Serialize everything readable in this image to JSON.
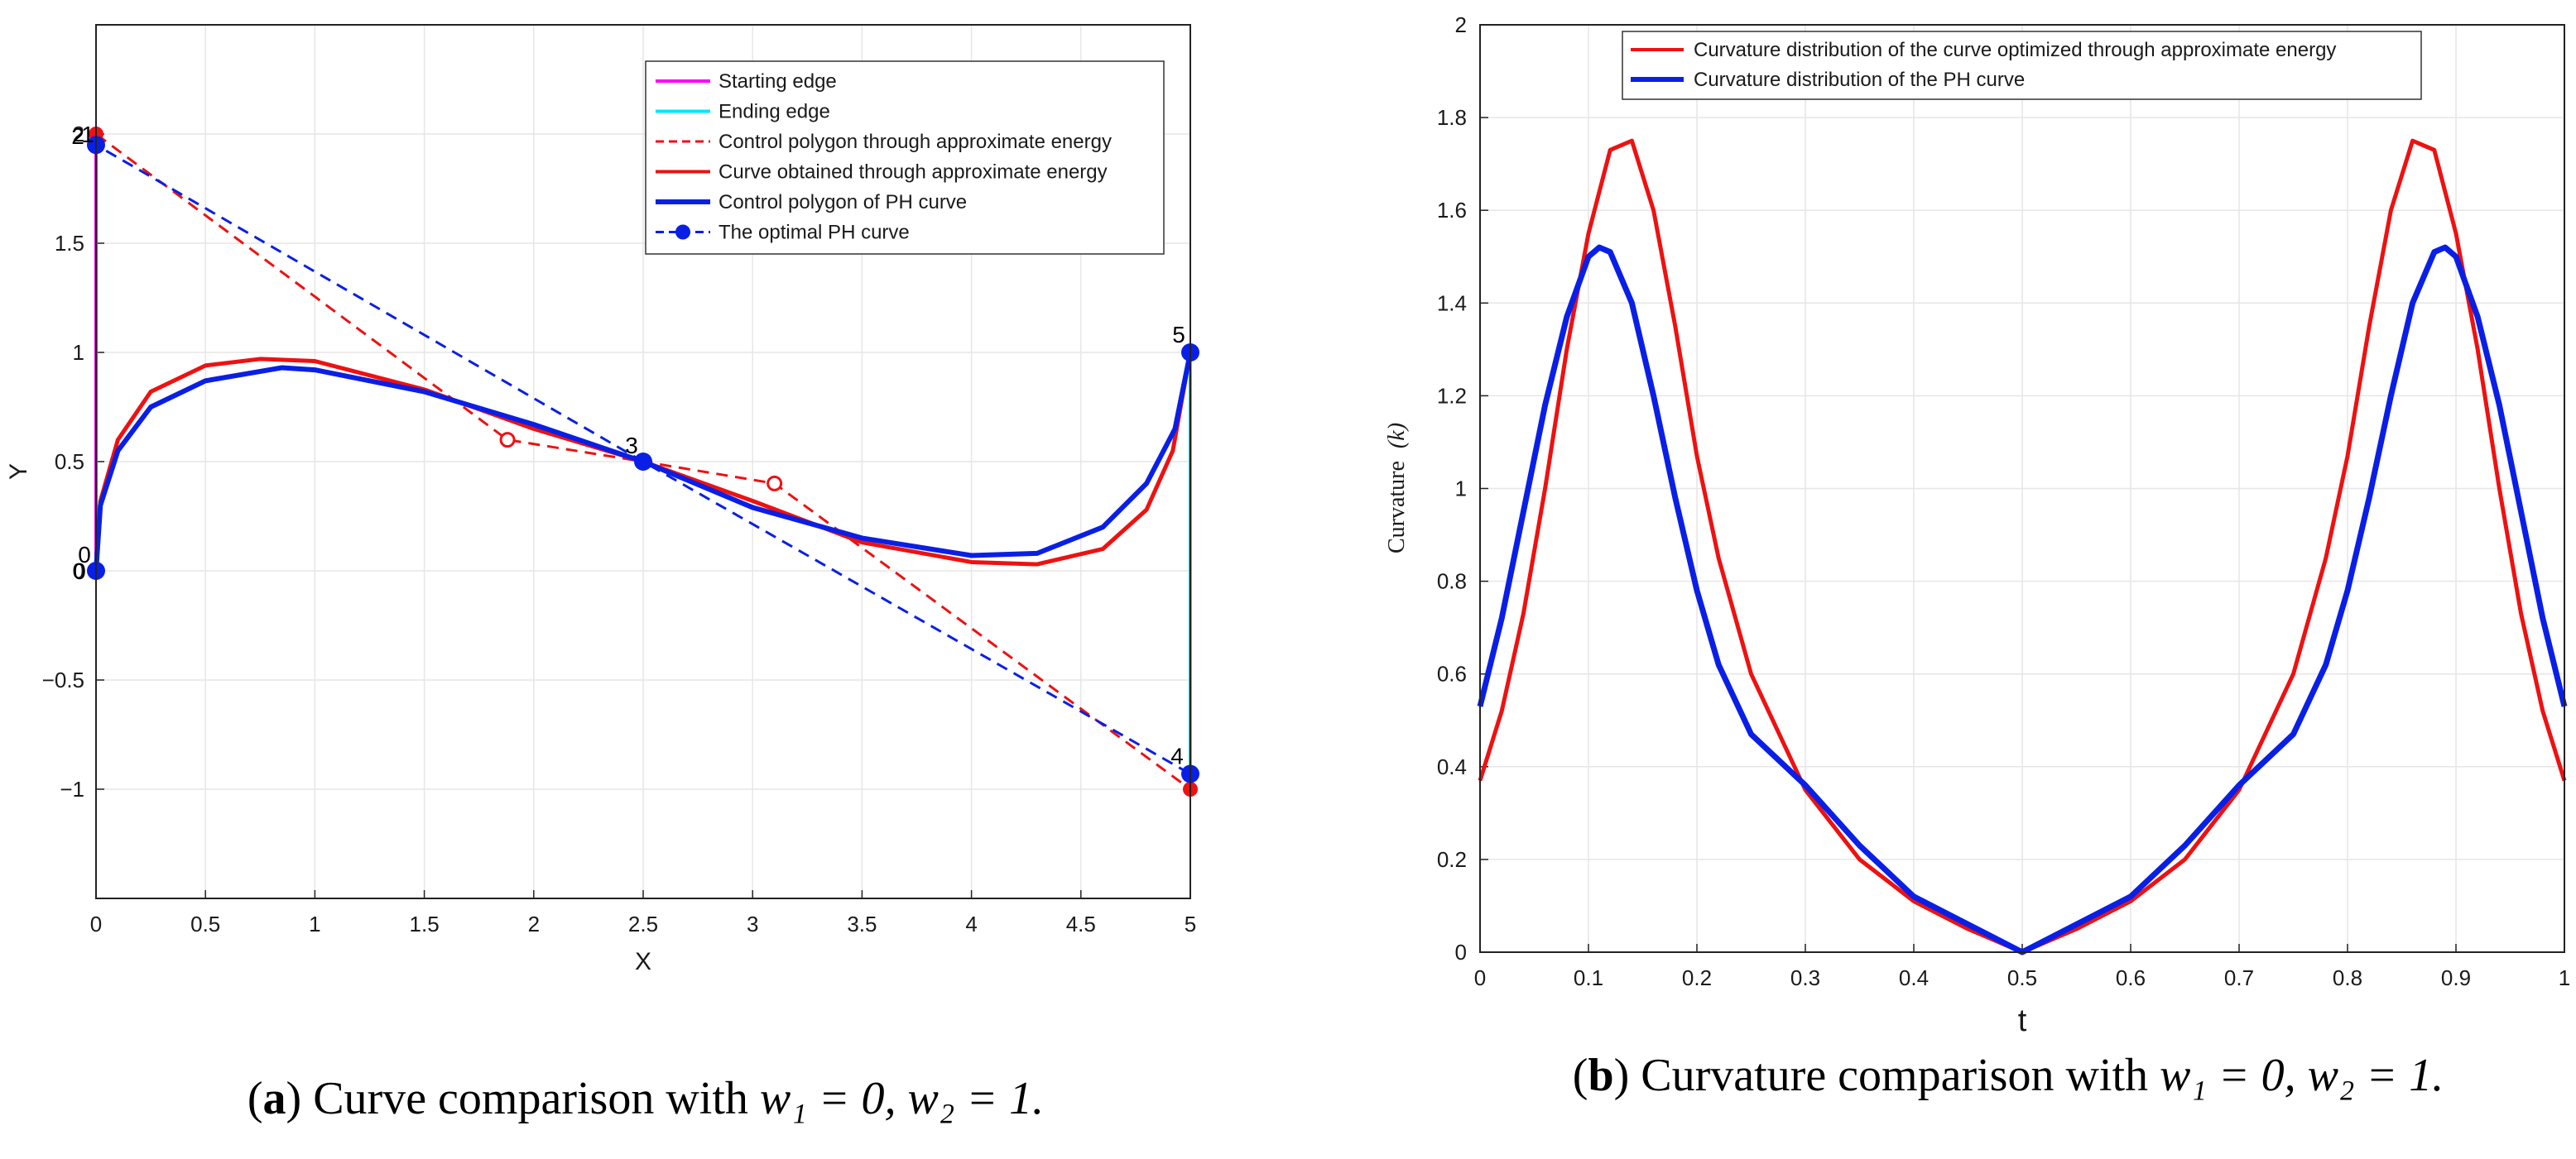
{
  "colors": {
    "magenta": "#ff00ff",
    "cyan": "#00e5ff",
    "red": "#ee1111",
    "blue": "#0a1fe6",
    "grid": "#e6e6e6",
    "axis": "#222222"
  },
  "chart_data": [
    {
      "panel": "a",
      "type": "line",
      "xlabel": "X",
      "ylabel": "Y",
      "xlim": [
        0,
        5
      ],
      "ylim": [
        -1.5,
        2.5
      ],
      "xticks": [
        "0",
        "0.5",
        "1",
        "1.5",
        "2",
        "2.5",
        "3",
        "3.5",
        "4",
        "4.5",
        "5"
      ],
      "yticks": [
        "−1",
        "−0.5",
        "0",
        "0.5",
        "1",
        "1.5",
        "2"
      ],
      "grid": true,
      "legend_position": "top-right",
      "legend": [
        "Starting edge",
        "Ending edge",
        "Control polygon through approximate energy",
        "Curve obtained through approximate energy",
        "Control polygon of PH curve",
        "The optimal PH curve"
      ],
      "series": [
        {
          "name": "Starting edge",
          "x": [
            0,
            0
          ],
          "y": [
            0,
            2.0
          ]
        },
        {
          "name": "Ending edge",
          "x": [
            5,
            5
          ],
          "y": [
            -0.93,
            1.0
          ]
        },
        {
          "name": "Control polygon through approximate energy",
          "x": [
            0,
            0,
            1.88,
            2.5,
            3.1,
            5,
            5
          ],
          "y": [
            0,
            2.0,
            0.6,
            0.5,
            0.4,
            -1.0,
            1.0
          ]
        },
        {
          "name": "Curve obtained through approximate energy",
          "x": [
            0,
            0.02,
            0.1,
            0.25,
            0.5,
            0.75,
            1.0,
            1.5,
            2.0,
            2.5,
            3.0,
            3.5,
            4.0,
            4.3,
            4.6,
            4.8,
            4.92,
            5.0
          ],
          "y": [
            0,
            0.32,
            0.6,
            0.82,
            0.94,
            0.97,
            0.96,
            0.83,
            0.65,
            0.5,
            0.32,
            0.13,
            0.04,
            0.03,
            0.1,
            0.28,
            0.55,
            1.0
          ]
        },
        {
          "name": "Control polygon of PH curve",
          "x": [
            0,
            0.02,
            0.1,
            0.25,
            0.5,
            0.85,
            1.0,
            1.5,
            2.0,
            2.5,
            3.0,
            3.5,
            4.0,
            4.3,
            4.6,
            4.8,
            4.93,
            5.0
          ],
          "y": [
            0,
            0.3,
            0.55,
            0.75,
            0.87,
            0.93,
            0.92,
            0.82,
            0.67,
            0.5,
            0.29,
            0.15,
            0.07,
            0.08,
            0.2,
            0.4,
            0.65,
            1.0
          ]
        },
        {
          "name": "The optimal PH curve",
          "x": [
            0,
            0,
            2.5,
            5,
            5
          ],
          "y": [
            0,
            1.95,
            0.5,
            -0.93,
            1.0
          ]
        }
      ],
      "red_solid_points": [
        [
          0,
          2.0
        ],
        [
          5,
          -1.0
        ]
      ],
      "red_open_points": [
        [
          1.88,
          0.6
        ],
        [
          3.1,
          0.4
        ]
      ],
      "blue_points": [
        [
          0,
          0
        ],
        [
          0,
          1.95
        ],
        [
          2.5,
          0.5
        ],
        [
          5,
          -0.93
        ],
        [
          5,
          1.0
        ]
      ],
      "point_labels": [
        {
          "text": "0",
          "x": 0,
          "y": 0
        },
        {
          "text": "0",
          "x": 0,
          "y": 0
        },
        {
          "text": "2",
          "x": 0,
          "y": 2.0
        },
        {
          "text": "1",
          "x": 0,
          "y": 2.0
        },
        {
          "text": "3",
          "x": 2.5,
          "y": 0.5
        },
        {
          "text": "4",
          "x": 5,
          "y": -0.93
        },
        {
          "text": "5",
          "x": 5,
          "y": 1.0
        }
      ]
    },
    {
      "panel": "b",
      "type": "line",
      "xlabel": "t",
      "ylabel": "Curvature",
      "ylabel_symbol": "(k)",
      "xlim": [
        0,
        1
      ],
      "ylim": [
        0,
        2
      ],
      "xticks": [
        "0",
        "0.1",
        "0.2",
        "0.3",
        "0.4",
        "0.5",
        "0.6",
        "0.7",
        "0.8",
        "0.9",
        "1"
      ],
      "yticks": [
        "0",
        "0.2",
        "0.4",
        "0.6",
        "0.8",
        "1",
        "1.2",
        "1.4",
        "1.6",
        "1.8",
        "2"
      ],
      "grid": true,
      "legend_position": "top-center",
      "legend": [
        "Curvature distribution of the curve optimized through approximate energy",
        "Curvature distribution of the PH curve"
      ],
      "series": [
        {
          "name": "Curvature distribution of the curve optimized through approximate energy",
          "x": [
            0,
            0.02,
            0.04,
            0.06,
            0.08,
            0.1,
            0.12,
            0.14,
            0.16,
            0.18,
            0.2,
            0.22,
            0.25,
            0.3,
            0.35,
            0.4,
            0.45,
            0.5,
            0.55,
            0.6,
            0.65,
            0.7,
            0.75,
            0.78,
            0.8,
            0.82,
            0.84,
            0.86,
            0.88,
            0.9,
            0.92,
            0.94,
            0.96,
            0.98,
            1.0
          ],
          "y": [
            0.37,
            0.52,
            0.73,
            1.0,
            1.3,
            1.55,
            1.73,
            1.75,
            1.6,
            1.35,
            1.07,
            0.85,
            0.6,
            0.35,
            0.2,
            0.11,
            0.05,
            0.0,
            0.05,
            0.11,
            0.2,
            0.35,
            0.6,
            0.85,
            1.07,
            1.35,
            1.6,
            1.75,
            1.73,
            1.55,
            1.3,
            1.0,
            0.73,
            0.52,
            0.37
          ]
        },
        {
          "name": "Curvature distribution of the PH curve",
          "x": [
            0,
            0.02,
            0.04,
            0.06,
            0.08,
            0.1,
            0.11,
            0.12,
            0.14,
            0.16,
            0.18,
            0.2,
            0.22,
            0.25,
            0.3,
            0.35,
            0.4,
            0.45,
            0.5,
            0.55,
            0.6,
            0.65,
            0.7,
            0.75,
            0.78,
            0.8,
            0.82,
            0.84,
            0.86,
            0.88,
            0.89,
            0.9,
            0.92,
            0.94,
            0.96,
            0.98,
            1.0
          ],
          "y": [
            0.53,
            0.72,
            0.95,
            1.18,
            1.37,
            1.5,
            1.52,
            1.51,
            1.4,
            1.2,
            0.98,
            0.78,
            0.62,
            0.47,
            0.36,
            0.23,
            0.12,
            0.06,
            0.0,
            0.06,
            0.12,
            0.23,
            0.36,
            0.47,
            0.62,
            0.78,
            0.98,
            1.2,
            1.4,
            1.51,
            1.52,
            1.5,
            1.37,
            1.18,
            0.95,
            0.72,
            0.53
          ]
        }
      ]
    }
  ],
  "captions": {
    "a": {
      "label": "a",
      "text": "Curve comparison with",
      "math": "w₁ = 0, w₂ = 1."
    },
    "b": {
      "label": "b",
      "text": "Curvature comparison with",
      "math": "w₁ = 0, w₂ = 1."
    }
  }
}
